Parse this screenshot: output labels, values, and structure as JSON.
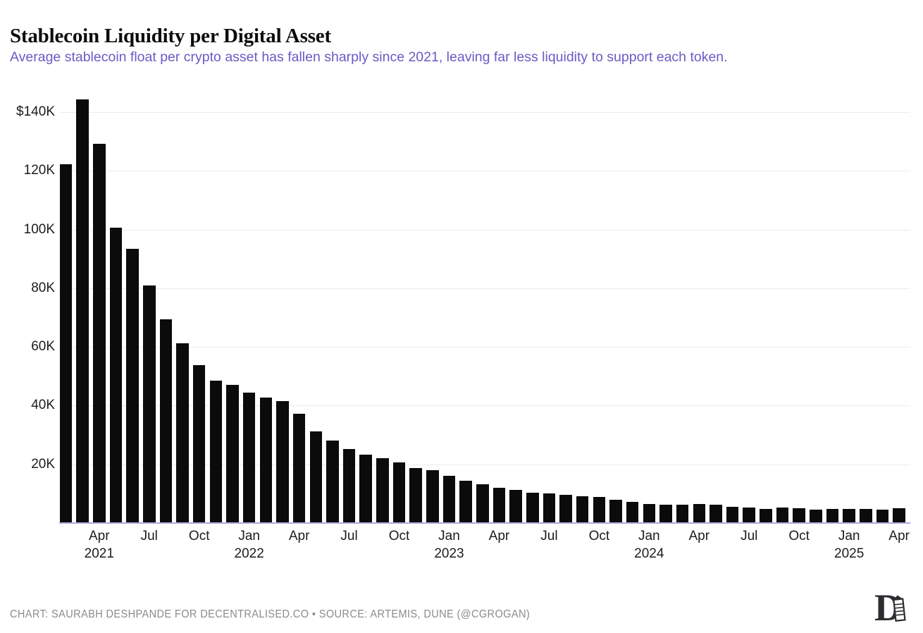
{
  "header": {
    "title": "Stablecoin Liquidity per Digital Asset",
    "subtitle": "Average stablecoin float per crypto asset has fallen sharply since 2021, leaving far less liquidity to support each token."
  },
  "footer": {
    "credit": "CHART: SAURABH DESHPANDE FOR DECENTRALISED.CO • SOURCE: ARTEMIS, DUNE (@CGROGAN)",
    "logo_icon": "decentralised-logo"
  },
  "colors": {
    "bar": "#0b0b0b",
    "title_text": "#0d0d0d",
    "subtitle_text": "#6a5bc6",
    "axis_text": "#1c1c1c",
    "gridline": "#ececec",
    "baseline": "#b5a6e0",
    "footer_text": "#8b8b8b"
  },
  "chart_data": {
    "type": "bar",
    "title": "Stablecoin Liquidity per Digital Asset",
    "subtitle": "Average stablecoin float per crypto asset has fallen sharply since 2021, leaving far less liquidity to support each token.",
    "unit": "USD thousands per asset",
    "ylim": [
      0,
      145
    ],
    "grid": "horizontal",
    "legend": "none",
    "x": [
      "2021-02",
      "2021-03",
      "2021-04",
      "2021-05",
      "2021-06",
      "2021-07",
      "2021-08",
      "2021-09",
      "2021-10",
      "2021-11",
      "2021-12",
      "2022-01",
      "2022-02",
      "2022-03",
      "2022-04",
      "2022-05",
      "2022-06",
      "2022-07",
      "2022-08",
      "2022-09",
      "2022-10",
      "2022-11",
      "2022-12",
      "2023-01",
      "2023-02",
      "2023-03",
      "2023-04",
      "2023-05",
      "2023-06",
      "2023-07",
      "2023-08",
      "2023-09",
      "2023-10",
      "2023-11",
      "2023-12",
      "2024-01",
      "2024-02",
      "2024-03",
      "2024-04",
      "2024-05",
      "2024-06",
      "2024-07",
      "2024-08",
      "2024-09",
      "2024-10",
      "2024-11",
      "2024-12",
      "2025-01",
      "2025-02",
      "2025-03",
      "2025-04"
    ],
    "values": [
      122.3,
      144.4,
      129.2,
      100.6,
      93.4,
      80.8,
      69.4,
      61.2,
      53.9,
      48.6,
      47.0,
      44.3,
      42.8,
      41.5,
      37.2,
      31.2,
      28.2,
      25.1,
      23.4,
      22.0,
      20.6,
      18.8,
      17.9,
      16.2,
      14.4,
      13.1,
      12.0,
      11.2,
      10.4,
      10.2,
      9.5,
      9.2,
      8.8,
      7.9,
      7.2,
      6.6,
      6.2,
      6.2,
      6.4,
      6.2,
      5.5,
      5.3,
      4.8,
      5.2,
      5.0,
      4.6,
      4.9,
      4.7,
      4.7,
      4.5,
      5.0
    ],
    "y_ticks": [
      {
        "label": "$140K",
        "value": 140
      },
      {
        "label": "120K",
        "value": 120
      },
      {
        "label": "100K",
        "value": 100
      },
      {
        "label": "80K",
        "value": 80
      },
      {
        "label": "60K",
        "value": 60
      },
      {
        "label": "40K",
        "value": 40
      },
      {
        "label": "20K",
        "value": 20
      }
    ],
    "x_ticks": [
      {
        "index": 2,
        "label": "Apr",
        "year": "2021"
      },
      {
        "index": 5,
        "label": "Jul",
        "year": ""
      },
      {
        "index": 8,
        "label": "Oct",
        "year": ""
      },
      {
        "index": 11,
        "label": "Jan",
        "year": "2022"
      },
      {
        "index": 14,
        "label": "Apr",
        "year": ""
      },
      {
        "index": 17,
        "label": "Jul",
        "year": ""
      },
      {
        "index": 20,
        "label": "Oct",
        "year": ""
      },
      {
        "index": 23,
        "label": "Jan",
        "year": "2023"
      },
      {
        "index": 26,
        "label": "Apr",
        "year": ""
      },
      {
        "index": 29,
        "label": "Jul",
        "year": ""
      },
      {
        "index": 32,
        "label": "Oct",
        "year": ""
      },
      {
        "index": 35,
        "label": "Jan",
        "year": "2024"
      },
      {
        "index": 38,
        "label": "Apr",
        "year": ""
      },
      {
        "index": 41,
        "label": "Jul",
        "year": ""
      },
      {
        "index": 44,
        "label": "Oct",
        "year": ""
      },
      {
        "index": 47,
        "label": "Jan",
        "year": "2025"
      },
      {
        "index": 50,
        "label": "Apr",
        "year": ""
      }
    ]
  }
}
